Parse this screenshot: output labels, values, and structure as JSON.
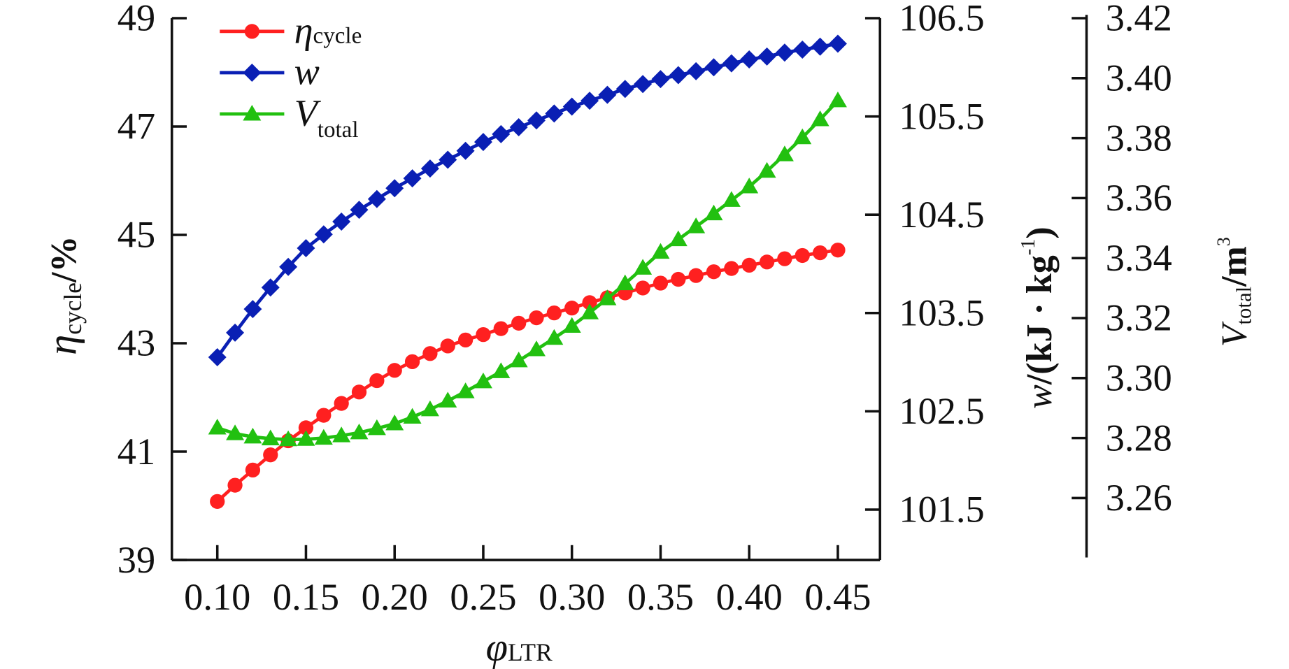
{
  "chart_data": {
    "type": "line",
    "xlabel": "φLTR",
    "xlabel_main": "φ",
    "xlabel_sub": "LTR",
    "x": [
      0.1,
      0.11,
      0.12,
      0.13,
      0.14,
      0.15,
      0.16,
      0.17,
      0.18,
      0.19,
      0.2,
      0.21,
      0.22,
      0.23,
      0.24,
      0.25,
      0.26,
      0.27,
      0.28,
      0.29,
      0.3,
      0.31,
      0.32,
      0.33,
      0.34,
      0.35,
      0.36,
      0.37,
      0.38,
      0.39,
      0.4,
      0.41,
      0.42,
      0.43,
      0.44,
      0.45
    ],
    "xlim": [
      0.075,
      0.47
    ],
    "xticks": [
      "0.10",
      "0.15",
      "0.20",
      "0.25",
      "0.30",
      "0.35",
      "0.40",
      "0.45"
    ],
    "axes": {
      "left": {
        "label_main": "η",
        "label_sub": "cycle",
        "label_tail": "/%",
        "ylim": [
          39,
          49
        ],
        "ticks": [
          "39",
          "41",
          "43",
          "45",
          "47",
          "49"
        ]
      },
      "right1": {
        "label_main": "w",
        "label_tail": "/(kJ · kg",
        "label_sup": "-1",
        "label_end": ")",
        "ylim": [
          101.5,
          106.5
        ],
        "ticks": [
          "101.5",
          "102.5",
          "103.5",
          "104.5",
          "105.5",
          "106.5"
        ]
      },
      "right2": {
        "label_main": "V",
        "label_sub": "total",
        "label_tail": "/m",
        "label_sup": "3",
        "ylim": [
          3.26,
          3.42
        ],
        "ticks": [
          "3.26",
          "3.28",
          "3.30",
          "3.32",
          "3.34",
          "3.36",
          "3.38",
          "3.40",
          "3.42"
        ]
      }
    },
    "series": [
      {
        "name": "ηcycle",
        "legend_main": "η",
        "legend_sub": "cycle",
        "axis": "left",
        "color": "#ff2020",
        "marker": "circle",
        "values": [
          40.08,
          40.38,
          40.66,
          40.94,
          41.2,
          41.44,
          41.67,
          41.89,
          42.1,
          42.31,
          42.5,
          42.66,
          42.81,
          42.95,
          43.06,
          43.16,
          43.27,
          43.37,
          43.47,
          43.56,
          43.65,
          43.75,
          43.84,
          43.93,
          44.02,
          44.11,
          44.18,
          44.25,
          44.32,
          44.38,
          44.44,
          44.5,
          44.56,
          44.62,
          44.67,
          44.72
        ]
      },
      {
        "name": "w",
        "legend_main": "w",
        "legend_sub": "",
        "axis": "right1",
        "color": "#0a1fb4",
        "marker": "diamond",
        "values": [
          103.05,
          103.3,
          103.54,
          103.76,
          103.97,
          104.16,
          104.3,
          104.43,
          104.55,
          104.66,
          104.77,
          104.87,
          104.97,
          105.06,
          105.15,
          105.24,
          105.32,
          105.39,
          105.46,
          105.53,
          105.6,
          105.66,
          105.72,
          105.78,
          105.83,
          105.88,
          105.92,
          105.96,
          106.0,
          106.04,
          106.08,
          106.11,
          106.15,
          106.18,
          106.21,
          106.24
        ]
      },
      {
        "name": "Vtotal",
        "legend_main": "V",
        "legend_sub": "total",
        "axis": "right2",
        "color": "#22c010",
        "marker": "triangle",
        "values": [
          3.2834,
          3.2815,
          3.2804,
          3.2798,
          3.2795,
          3.2796,
          3.28,
          3.2808,
          3.2818,
          3.2832,
          3.2848,
          3.287,
          3.2895,
          3.2924,
          3.2955,
          3.2988,
          3.3022,
          3.3058,
          3.3095,
          3.3133,
          3.3173,
          3.3218,
          3.3265,
          3.3315,
          3.3367,
          3.342,
          3.3462,
          3.3505,
          3.3548,
          3.3593,
          3.3638,
          3.369,
          3.3745,
          3.3802,
          3.3862,
          3.3925
        ]
      }
    ],
    "legend": "top-left",
    "grid": false
  }
}
